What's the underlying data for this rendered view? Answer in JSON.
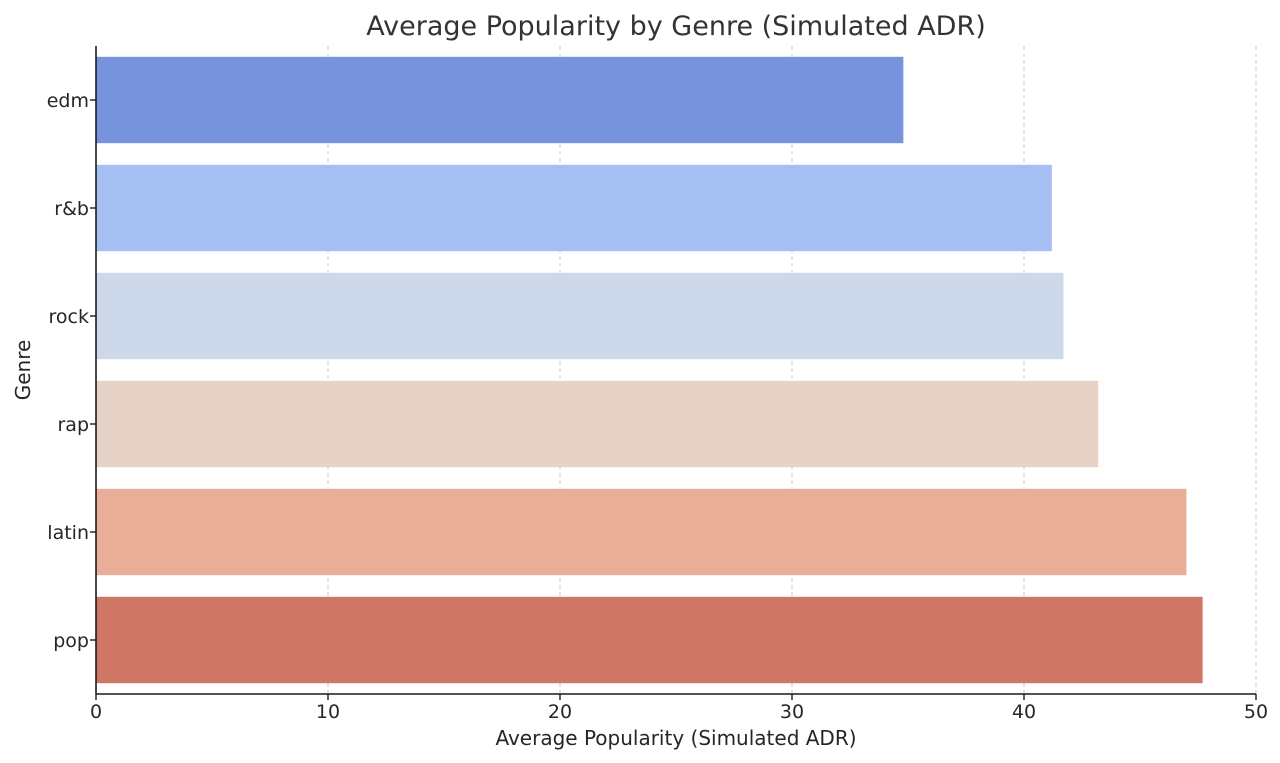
{
  "chart_data": {
    "type": "bar",
    "orientation": "horizontal",
    "title": "Average Popularity by Genre (Simulated ADR)",
    "xlabel": "Average Popularity (Simulated ADR)",
    "ylabel": "Genre",
    "xlim": [
      0,
      50
    ],
    "x_ticks": [
      0,
      10,
      20,
      30,
      40,
      50
    ],
    "grid": "x-dashed",
    "categories": [
      "edm",
      "r&b",
      "rock",
      "rap",
      "latin",
      "pop"
    ],
    "values": [
      34.8,
      41.2,
      41.7,
      43.2,
      47.0,
      47.7
    ],
    "colors": [
      "#7893de",
      "#a5bff2",
      "#cdd8ea",
      "#e7d2c7",
      "#e8ae97",
      "#d07664"
    ]
  }
}
